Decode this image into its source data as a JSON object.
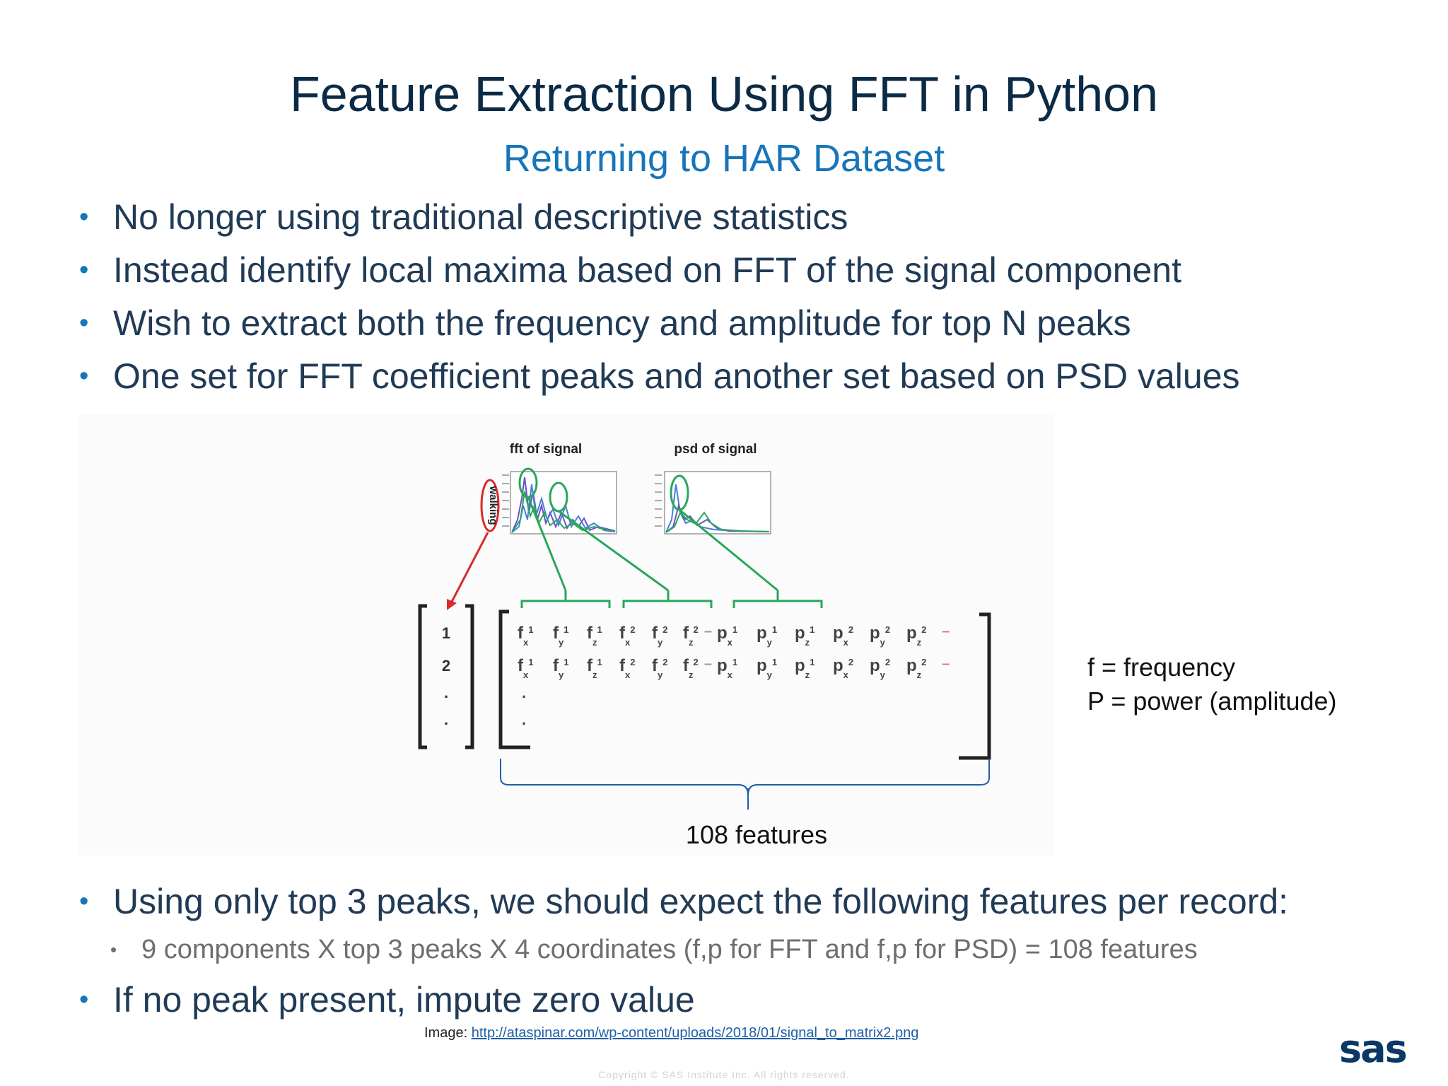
{
  "title": "Feature Extraction Using FFT in Python",
  "subtitle": "Returning to HAR Dataset",
  "bullets_top": [
    "No longer using traditional descriptive statistics",
    "Instead identify local maxima based on FFT of the signal component",
    "Wish to extract both the frequency and amplitude for top N peaks",
    "One set for FFT coefficient peaks and another set based on PSD values"
  ],
  "figure": {
    "fft_title": "fft of signal",
    "psd_title": "psd of signal",
    "activity_label": "walking",
    "row_labels": [
      "1",
      "2",
      ".",
      "."
    ],
    "features_label": "108 features",
    "legend": [
      "f = frequency",
      "P = power (amplitude)"
    ]
  },
  "bullets_bottom": {
    "main": "Using only top 3 peaks, we should expect the following features per record:",
    "sub": "9 components X top 3 peaks X 4 coordinates (f,p for FFT and f,p for PSD) = 108 features",
    "last": "If no peak present, impute zero value"
  },
  "credit": {
    "prefix": "Image: ",
    "link": "http://ataspinar.com/wp-content/uploads/2018/01/signal_to_matrix2.png"
  },
  "copyright": "Copyright © SAS Institute Inc. All rights reserved.",
  "logo": "sas",
  "colors": {
    "title": "#0b2a45",
    "accent": "#1775ba",
    "green_marker": "#2aa65c",
    "red_marker": "#d82b2b"
  }
}
